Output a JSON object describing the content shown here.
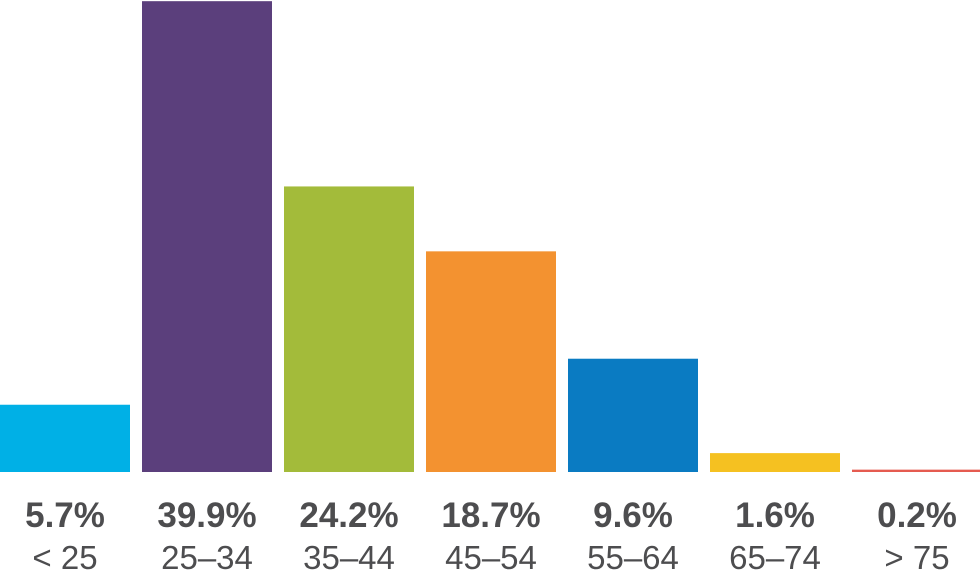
{
  "chart_data": {
    "type": "bar",
    "categories": [
      "< 25",
      "25–34",
      "35–44",
      "45–54",
      "55–64",
      "65–74",
      "> 75"
    ],
    "values": [
      5.7,
      39.9,
      24.2,
      18.7,
      9.6,
      1.6,
      0.2
    ],
    "value_labels": [
      "5.7%",
      "39.9%",
      "24.2%",
      "18.7%",
      "9.6%",
      "1.6%",
      "0.2%"
    ],
    "colors": [
      "#00b0e6",
      "#5b3f7c",
      "#a3bb3a",
      "#f39230",
      "#0a7bc2",
      "#f5c121",
      "#e55b50"
    ],
    "ylim": [
      0,
      40
    ],
    "grid": false,
    "legend": "none"
  }
}
